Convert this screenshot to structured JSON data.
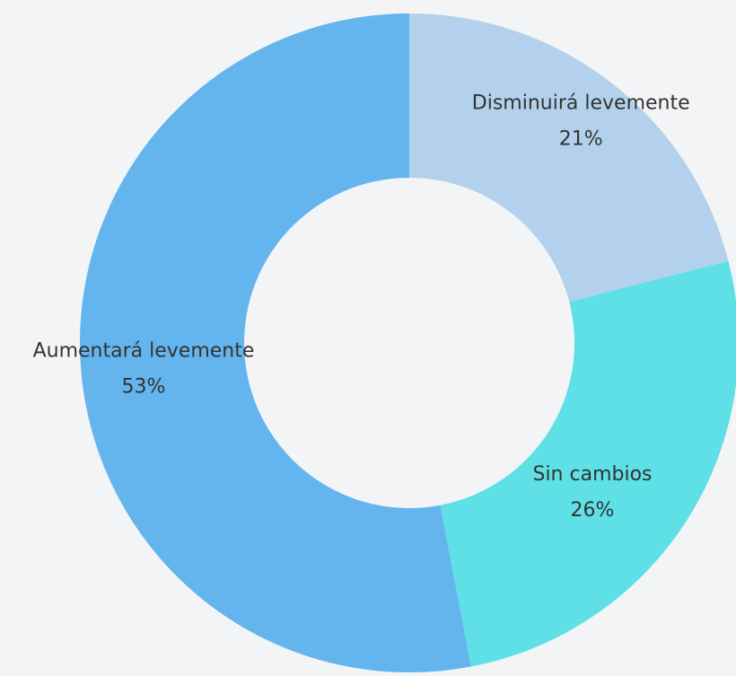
{
  "chart_data": {
    "type": "donut",
    "categories": [
      "Disminuirá levemente",
      "Sin cambios",
      "Aumentará levemente"
    ],
    "values": [
      21,
      26,
      53
    ],
    "value_labels": [
      "21%",
      "26%",
      "53%"
    ],
    "colors": [
      "#b3d1ec",
      "#5ee0e6",
      "#64b5ee"
    ]
  }
}
